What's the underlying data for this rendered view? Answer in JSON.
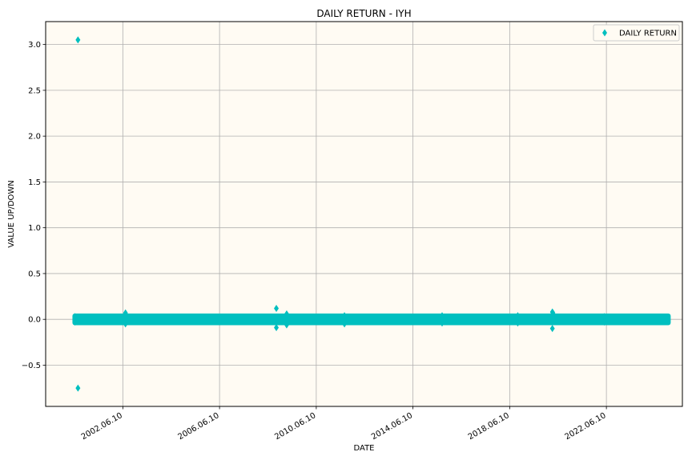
{
  "chart_data": {
    "type": "scatter",
    "title": "DAILY RETURN - IYH",
    "xlabel": "DATE",
    "ylabel": "VALUE UP/DOWN",
    "xlim": [
      "1999-04-01",
      "2025-08-01"
    ],
    "ylim": [
      -0.95,
      3.25
    ],
    "x_ticks": [
      "2002-06-10",
      "2006-06-10",
      "2010-06-10",
      "2014-06-10",
      "2018-06-10",
      "2022-06-10"
    ],
    "x_tick_labels": [
      "2002.06.10",
      "2006.06.10",
      "2010.06.10",
      "2014.06.10",
      "2018.06.10",
      "2022.06.10"
    ],
    "y_ticks": [
      -0.5,
      0.0,
      0.5,
      1.0,
      1.5,
      2.0,
      2.5,
      3.0
    ],
    "y_tick_labels": [
      "−0.5",
      "0.0",
      "0.5",
      "1.0",
      "1.5",
      "2.0",
      "2.5",
      "3.0"
    ],
    "grid": true,
    "legend_position": "top-right",
    "marker": "diamond",
    "series": [
      {
        "name": "DAILY RETURN",
        "color": "#00bfbf",
        "band": {
          "x_start": "2000-06-15",
          "x_end": "2024-12-31",
          "typical_range": [
            -0.02,
            0.02
          ]
        },
        "points": [
          {
            "x": "2000-06-15",
            "y": 0.03
          },
          {
            "x": "2000-06-15",
            "y": -0.03
          },
          {
            "x": "2000-08-01",
            "y": 3.05
          },
          {
            "x": "2000-08-01",
            "y": -0.75
          },
          {
            "x": "2002-07-20",
            "y": 0.07
          },
          {
            "x": "2002-07-20",
            "y": -0.05
          },
          {
            "x": "2008-10-15",
            "y": 0.12
          },
          {
            "x": "2008-10-15",
            "y": -0.09
          },
          {
            "x": "2009-03-20",
            "y": 0.06
          },
          {
            "x": "2009-03-20",
            "y": -0.06
          },
          {
            "x": "2011-08-10",
            "y": 0.04
          },
          {
            "x": "2011-08-10",
            "y": -0.05
          },
          {
            "x": "2015-08-24",
            "y": 0.04
          },
          {
            "x": "2015-08-24",
            "y": -0.04
          },
          {
            "x": "2018-10-10",
            "y": 0.04
          },
          {
            "x": "2018-10-10",
            "y": -0.04
          },
          {
            "x": "2020-03-16",
            "y": 0.08
          },
          {
            "x": "2020-03-16",
            "y": -0.1
          },
          {
            "x": "2020-03-24",
            "y": 0.07
          },
          {
            "x": "2022-05-10",
            "y": 0.03
          },
          {
            "x": "2022-05-10",
            "y": -0.03
          }
        ]
      }
    ]
  }
}
